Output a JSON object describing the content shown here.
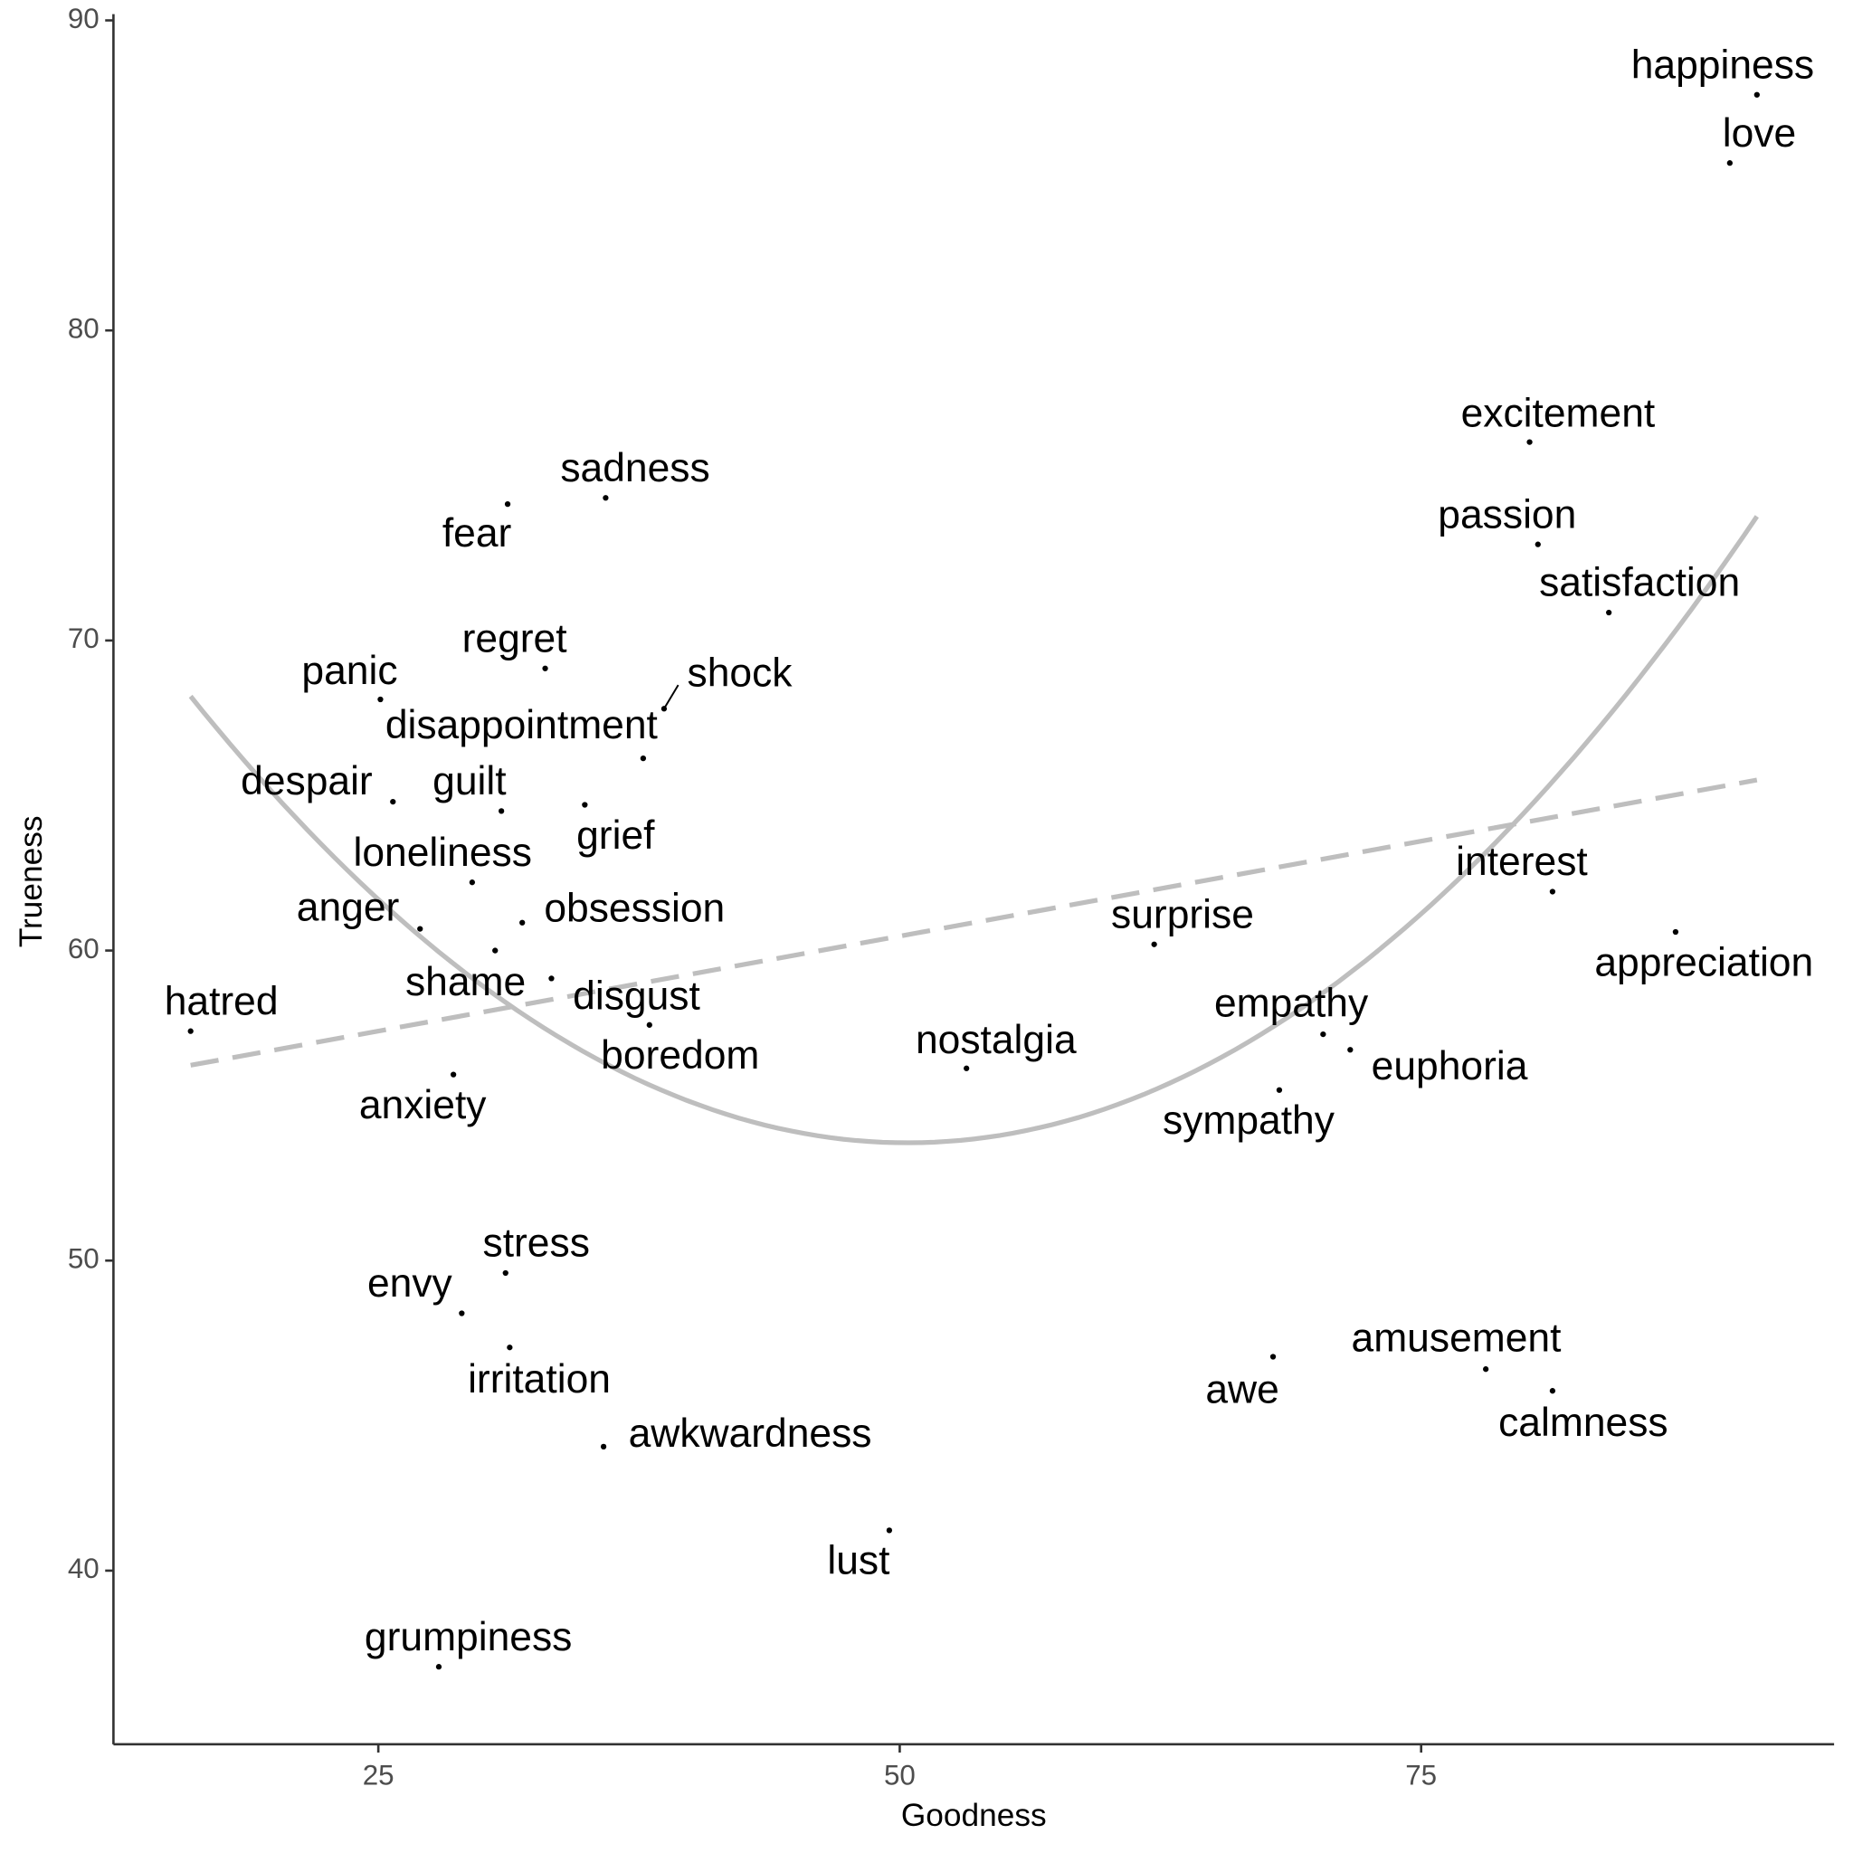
{
  "chart_data": {
    "type": "scatter",
    "x_label": "Goodness",
    "y_label": "Trueness",
    "xlim": [
      12.3,
      94.8
    ],
    "ylim": [
      34.4,
      90.2
    ],
    "xticks": [
      25,
      50,
      75
    ],
    "yticks": [
      40,
      50,
      60,
      70,
      80,
      90
    ],
    "grid": false,
    "point_color": "#000000",
    "labels": [
      "happiness",
      "love",
      "excitement",
      "passion",
      "satisfaction",
      "interest",
      "appreciation",
      "surprise",
      "empathy",
      "euphoria",
      "sympathy",
      "nostalgia",
      "amusement",
      "calmness",
      "awe",
      "lust",
      "grumpiness",
      "awkwardness",
      "irritation",
      "stress",
      "envy",
      "anxiety",
      "hatred",
      "anger",
      "shame",
      "obsession",
      "disgust",
      "boredom",
      "loneliness",
      "despair",
      "guilt",
      "grief",
      "disappointment",
      "shock",
      "panic",
      "regret",
      "fear",
      "sadness"
    ],
    "x": [
      91.1,
      89.8,
      80.2,
      80.6,
      84.0,
      81.3,
      87.2,
      62.2,
      70.3,
      71.6,
      68.2,
      53.2,
      78.1,
      81.3,
      67.9,
      49.5,
      27.9,
      35.8,
      31.3,
      31.1,
      29.0,
      28.6,
      16.0,
      27.0,
      30.6,
      31.9,
      33.3,
      38.0,
      29.5,
      25.7,
      30.9,
      34.9,
      37.7,
      38.7,
      25.1,
      33.0,
      31.2,
      35.9
    ],
    "values": [
      87.6,
      85.4,
      76.4,
      73.1,
      70.9,
      61.9,
      60.6,
      60.2,
      57.3,
      56.8,
      55.5,
      56.2,
      46.5,
      45.8,
      46.9,
      41.3,
      36.9,
      44.0,
      47.2,
      49.6,
      48.3,
      56.0,
      57.4,
      60.7,
      60.0,
      60.9,
      59.1,
      57.6,
      62.2,
      64.8,
      64.5,
      64.7,
      66.2,
      67.8,
      68.1,
      69.1,
      74.4,
      74.6
    ],
    "fits": [
      {
        "kind": "quadratic",
        "dashed": false,
        "color": "#bebebe",
        "x": [
          16.0,
          50.2,
          91.1
        ],
        "values": [
          68.2,
          53.8,
          74.0
        ]
      },
      {
        "kind": "linear",
        "dashed": true,
        "color": "#bebebe",
        "x": [
          16.0,
          91.1
        ],
        "values": [
          56.3,
          65.5
        ]
      }
    ]
  }
}
